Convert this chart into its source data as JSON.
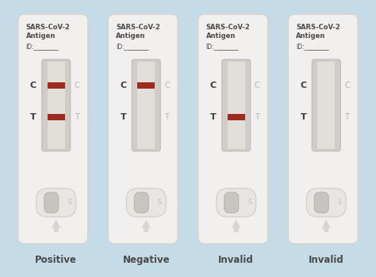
{
  "background_color": "#c5dce8",
  "card_color": "#f2f0ee",
  "card_border_color": "#d5d2cc",
  "window_outer_color": "#d0cdc8",
  "window_outer_border": "#c0bcb6",
  "strip_color": "#e2dfdb",
  "red_line_color": "#9e2a20",
  "label_color": "#4a4a4a",
  "ct_left_color": "#3a3a3a",
  "ct_right_color": "#b8b5b0",
  "oval_outer_color": "#e8e5e2",
  "oval_outer_border": "#d0cdc8",
  "oval_inner_color": "#c8c5c0",
  "oval_inner_border": "#b8b5b0",
  "arrow_color": "#d8d5d0",
  "s_color": "#c0bcb6",
  "title_text": "SARS-CoV-2\nAntigen",
  "id_text": "ID:________",
  "label_bottom": [
    "Positive",
    "Negative",
    "Invalid",
    "Invalid"
  ],
  "cards": [
    {
      "c_line": true,
      "t_line": true
    },
    {
      "c_line": true,
      "t_line": false
    },
    {
      "c_line": false,
      "t_line": true
    },
    {
      "c_line": false,
      "t_line": false
    }
  ],
  "figsize": [
    4.74,
    3.5
  ],
  "dpi": 100
}
